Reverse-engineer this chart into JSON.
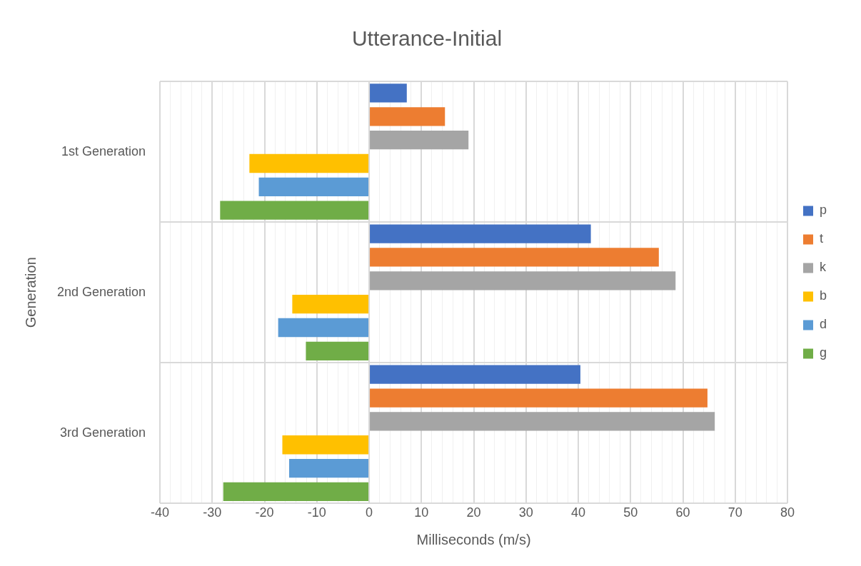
{
  "chart_data": {
    "type": "bar",
    "orientation": "horizontal",
    "title": "Utterance-Initial",
    "xlabel": "Milliseconds (m/s)",
    "ylabel": "Generation",
    "categories": [
      "1st Generation",
      "2nd Generation",
      "3rd Generation"
    ],
    "series": [
      {
        "name": "p",
        "color": "#4472c4",
        "values": [
          7.2,
          42.4,
          40.4
        ]
      },
      {
        "name": "t",
        "color": "#ed7d31",
        "values": [
          14.5,
          55.4,
          64.7
        ]
      },
      {
        "name": "k",
        "color": "#a5a5a5",
        "values": [
          19,
          58.6,
          66.1
        ]
      },
      {
        "name": "b",
        "color": "#ffc000",
        "values": [
          -22.9,
          -14.7,
          -16.6
        ]
      },
      {
        "name": "d",
        "color": "#5b9bd5",
        "values": [
          -21.1,
          -17.4,
          -15.3
        ]
      },
      {
        "name": "g",
        "color": "#70ad47",
        "values": [
          -28.5,
          -12.1,
          -27.9
        ]
      }
    ],
    "xlim": [
      -40,
      80
    ],
    "xticks": [
      -40,
      {
        "value": -38,
        "label": null
      },
      {
        "value": -36,
        "label": null
      },
      {
        "value": -34,
        "label": null
      },
      {
        "value": -32,
        "label": null
      },
      -30,
      {
        "value": -28,
        "label": null
      },
      {
        "value": -26,
        "label": null
      },
      {
        "value": -24,
        "label": null
      },
      {
        "value": -22,
        "label": null
      },
      -20,
      {
        "value": -18,
        "label": null
      },
      {
        "value": -16,
        "label": null
      },
      {
        "value": -14,
        "label": null
      },
      {
        "value": -12,
        "label": null
      },
      -10,
      {
        "value": -8,
        "label": null
      },
      {
        "value": -6,
        "label": null
      },
      {
        "value": -4,
        "label": null
      },
      {
        "value": -2,
        "label": null
      },
      0,
      {
        "value": 2,
        "label": null
      },
      {
        "value": 4,
        "label": null
      },
      {
        "value": 6,
        "label": null
      },
      {
        "value": 8,
        "label": null
      },
      10,
      {
        "value": 12,
        "label": null
      },
      {
        "value": 14,
        "label": null
      },
      {
        "value": 16,
        "label": null
      },
      {
        "value": 18,
        "label": null
      },
      20,
      {
        "value": 22,
        "label": null
      },
      {
        "value": 24,
        "label": null
      },
      {
        "value": 26,
        "label": null
      },
      {
        "value": 28,
        "label": null
      },
      30,
      {
        "value": 32,
        "label": null
      },
      {
        "value": 34,
        "label": null
      },
      {
        "value": 36,
        "label": null
      },
      {
        "value": 38,
        "label": null
      },
      40,
      {
        "value": 42,
        "label": null
      },
      {
        "value": 44,
        "label": null
      },
      {
        "value": 46,
        "label": null
      },
      {
        "value": 48,
        "label": null
      },
      50,
      {
        "value": 52,
        "label": null
      },
      {
        "value": 54,
        "label": null
      },
      {
        "value": 56,
        "label": null
      },
      {
        "value": 58,
        "label": null
      },
      60,
      {
        "value": 62,
        "label": null
      },
      {
        "value": 64,
        "label": null
      },
      {
        "value": 66,
        "label": null
      },
      {
        "value": 68,
        "label": null
      },
      70,
      {
        "value": 72,
        "label": null
      },
      {
        "value": 74,
        "label": null
      },
      {
        "value": 76,
        "label": null
      },
      {
        "value": 78,
        "label": null
      },
      80
    ],
    "grid": true,
    "legend": "right"
  }
}
